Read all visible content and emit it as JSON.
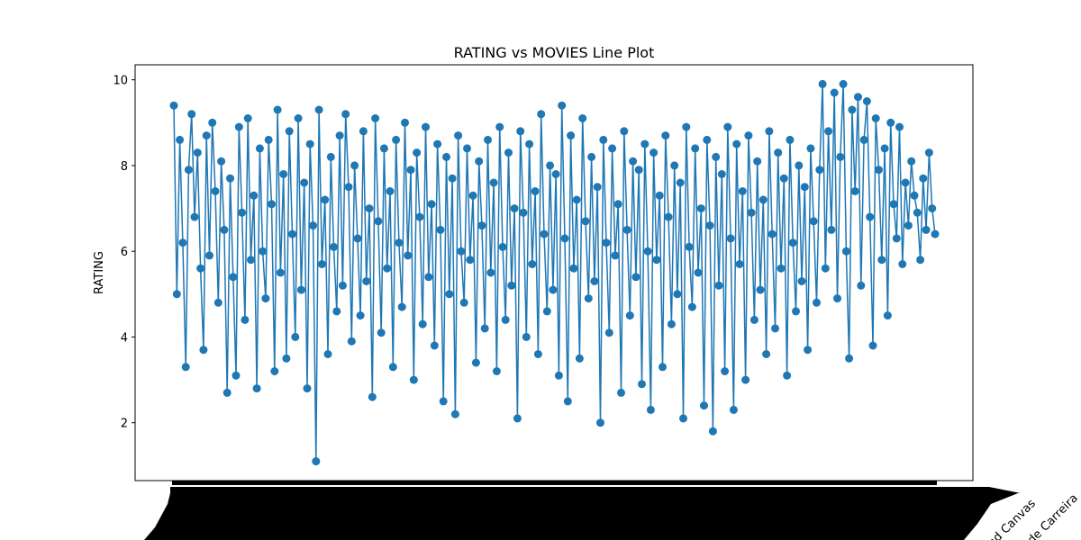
{
  "chart_data": {
    "type": "line",
    "title": "RATING vs MOVIES Line Plot",
    "xlabel": "",
    "ylabel": "RATING",
    "ylim": [
      0.65,
      10.35
    ],
    "yticks": [
      2,
      4,
      6,
      8,
      10
    ],
    "grid": false,
    "legend": "none",
    "marker": "circle",
    "color": "#1f77b4",
    "x_tick_labels_visible": [
      "nd Canvas",
      "de Carreira"
    ],
    "series": [
      {
        "values": [
          9.4,
          5.0,
          8.6,
          6.2,
          3.3,
          7.9,
          9.2,
          6.8,
          8.3,
          5.6,
          3.7,
          8.7,
          5.9,
          9.0,
          7.4,
          4.8,
          8.1,
          6.5,
          2.7,
          7.7,
          5.4,
          3.1,
          8.9,
          6.9,
          4.4,
          9.1,
          5.8,
          7.3,
          2.8,
          8.4,
          6.0,
          4.9,
          8.6,
          7.1,
          3.2,
          9.3,
          5.5,
          7.8,
          3.5,
          8.8,
          6.4,
          4.0,
          9.1,
          5.1,
          7.6,
          2.8,
          8.5,
          6.6,
          1.1,
          9.3,
          5.7,
          7.2,
          3.6,
          8.2,
          6.1,
          4.6,
          8.7,
          5.2,
          9.2,
          7.5,
          3.9,
          8.0,
          6.3,
          4.5,
          8.8,
          5.3,
          7.0,
          2.6,
          9.1,
          6.7,
          4.1,
          8.4,
          5.6,
          7.4,
          3.3,
          8.6,
          6.2,
          4.7,
          9.0,
          5.9,
          7.9,
          3.0,
          8.3,
          6.8,
          4.3,
          8.9,
          5.4,
          7.1,
          3.8,
          8.5,
          6.5,
          2.5,
          8.2,
          5.0,
          7.7,
          2.2,
          8.7,
          6.0,
          4.8,
          8.4,
          5.8,
          7.3,
          3.4,
          8.1,
          6.6,
          4.2,
          8.6,
          5.5,
          7.6,
          3.2,
          8.9,
          6.1,
          4.4,
          8.3,
          5.2,
          7.0,
          2.1,
          8.8,
          6.9,
          4.0,
          8.5,
          5.7,
          7.4,
          3.6,
          9.2,
          6.4,
          4.6,
          8.0,
          5.1,
          7.8,
          3.1,
          9.4,
          6.3,
          2.5,
          8.7,
          5.6,
          7.2,
          3.5,
          9.1,
          6.7,
          4.9,
          8.2,
          5.3,
          7.5,
          2.0,
          8.6,
          6.2,
          4.1,
          8.4,
          5.9,
          7.1,
          2.7,
          8.8,
          6.5,
          4.5,
          8.1,
          5.4,
          7.9,
          2.9,
          8.5,
          6.0,
          2.3,
          8.3,
          5.8,
          7.3,
          3.3,
          8.7,
          6.8,
          4.3,
          8.0,
          5.0,
          7.6,
          2.1,
          8.9,
          6.1,
          4.7,
          8.4,
          5.5,
          7.0,
          2.4,
          8.6,
          6.6,
          1.8,
          8.2,
          5.2,
          7.8,
          3.2,
          8.9,
          6.3,
          2.3,
          8.5,
          5.7,
          7.4,
          3.0,
          8.7,
          6.9,
          4.4,
          8.1,
          5.1,
          7.2,
          3.6,
          8.8,
          6.4,
          4.2,
          8.3,
          5.6,
          7.7,
          3.1,
          8.6,
          6.2,
          4.6,
          8.0,
          5.3,
          7.5,
          3.7,
          8.4,
          6.7,
          4.8,
          7.9,
          9.9,
          5.6,
          8.8,
          6.5,
          9.7,
          4.9,
          8.2,
          9.9,
          6.0,
          3.5,
          9.3,
          7.4,
          9.6,
          5.2,
          8.6,
          9.5,
          6.8,
          3.8,
          9.1,
          7.9,
          5.8,
          8.4,
          4.5,
          9.0,
          7.1,
          6.3,
          8.9,
          5.7,
          7.6,
          6.6,
          8.1,
          7.3,
          6.9,
          5.8,
          7.7,
          6.5,
          8.3,
          7.0,
          6.4
        ]
      }
    ]
  }
}
